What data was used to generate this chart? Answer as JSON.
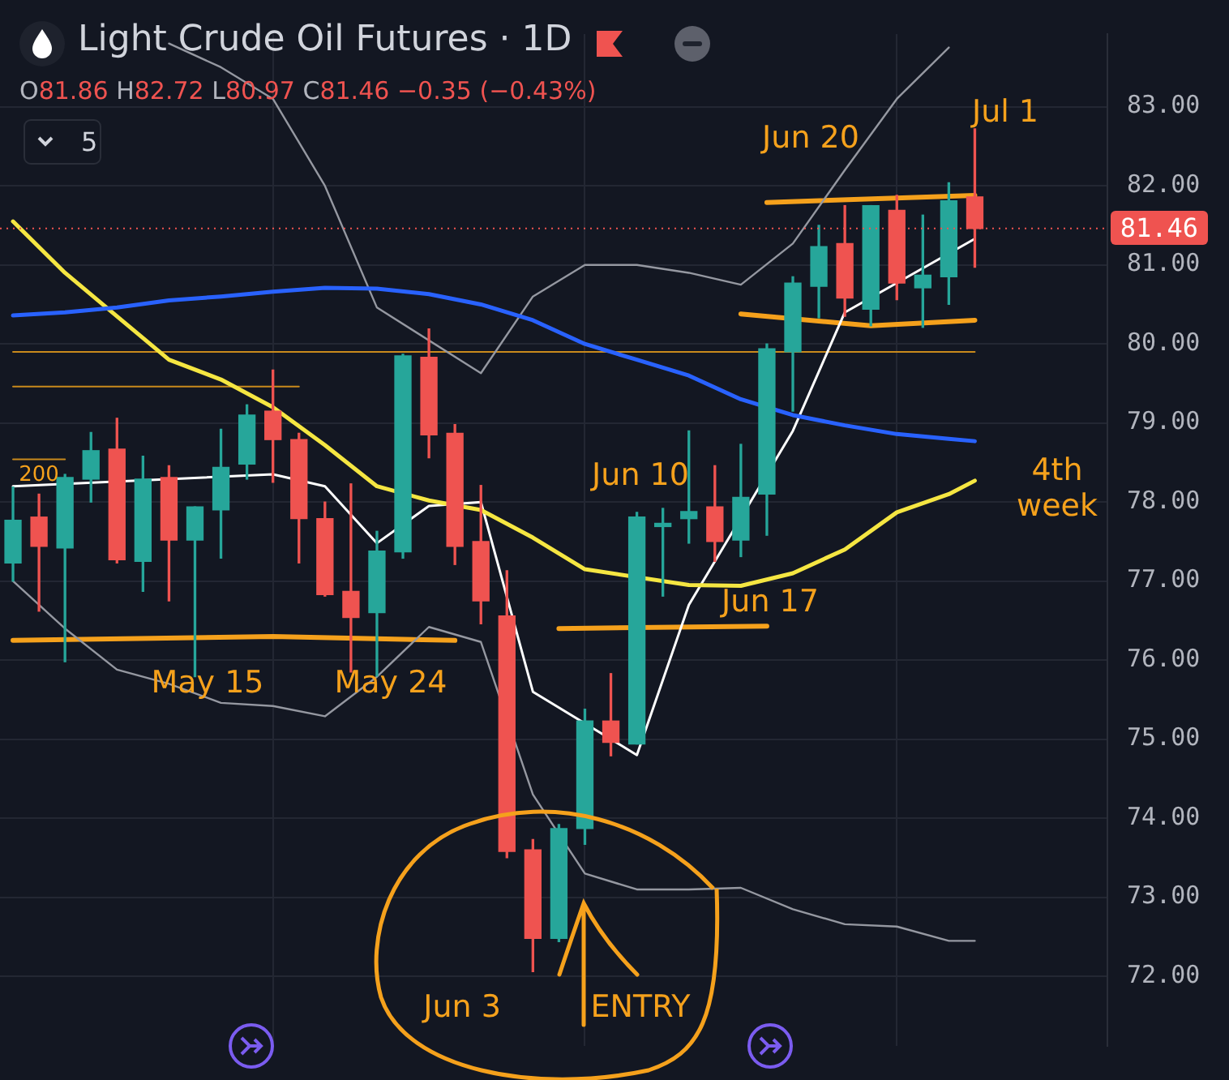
{
  "chart_data": {
    "type": "candlestick",
    "title": "Light Crude Oil Futures · 1D",
    "subtitle": "O81.86 H82.72 L80.97 C81.46 −0.35 (−0.43%)",
    "categories": [
      null,
      null,
      null,
      null,
      null,
      null,
      null,
      null,
      null,
      null,
      null,
      null,
      null,
      null,
      null,
      null,
      null,
      null,
      null,
      null,
      null,
      null,
      null,
      null,
      null,
      null,
      null,
      null,
      null,
      null,
      null,
      null,
      null,
      null,
      null,
      null,
      null,
      null
    ],
    "ohlc": [
      [
        77.23,
        78.19,
        77.0,
        77.77
      ],
      [
        77.81,
        78.1,
        76.62,
        77.44
      ],
      [
        77.42,
        78.35,
        75.98,
        78.31
      ],
      [
        78.29,
        78.88,
        78.0,
        78.65
      ],
      [
        78.67,
        79.06,
        77.23,
        77.27
      ],
      [
        77.25,
        78.58,
        76.87,
        78.29
      ],
      [
        78.31,
        78.46,
        76.75,
        77.52
      ],
      [
        77.52,
        77.94,
        75.79,
        77.94
      ],
      [
        77.9,
        78.92,
        77.29,
        78.44
      ],
      [
        78.48,
        79.23,
        78.29,
        79.1
      ],
      [
        79.15,
        79.67,
        78.25,
        78.79
      ],
      [
        78.79,
        78.87,
        77.23,
        77.79
      ],
      [
        77.79,
        78.0,
        76.81,
        76.83
      ],
      [
        76.87,
        78.23,
        75.85,
        76.54
      ],
      [
        76.6,
        77.63,
        75.8,
        77.38
      ],
      [
        77.37,
        79.87,
        77.29,
        79.85
      ],
      [
        79.83,
        80.19,
        78.56,
        78.85
      ],
      [
        78.87,
        78.98,
        77.21,
        77.44
      ],
      [
        77.5,
        78.21,
        76.46,
        76.75
      ],
      [
        76.56,
        77.13,
        73.5,
        73.58
      ],
      [
        73.6,
        73.73,
        72.06,
        72.48
      ],
      [
        72.48,
        73.92,
        72.44,
        73.87
      ],
      [
        73.87,
        75.38,
        73.67,
        75.23
      ],
      [
        75.23,
        75.83,
        74.79,
        74.96
      ],
      [
        74.94,
        77.87,
        74.94,
        77.81
      ],
      [
        77.69,
        77.92,
        76.81,
        77.73
      ],
      [
        77.79,
        78.9,
        77.48,
        77.88
      ],
      [
        77.94,
        78.46,
        77.25,
        77.5
      ],
      [
        77.52,
        78.73,
        77.31,
        78.06
      ],
      [
        78.1,
        80.0,
        77.58,
        79.94
      ],
      [
        79.9,
        80.85,
        79.15,
        80.77
      ],
      [
        80.73,
        81.5,
        80.33,
        81.23
      ],
      [
        81.27,
        81.75,
        80.35,
        80.58
      ],
      [
        80.44,
        81.75,
        80.23,
        81.75
      ],
      [
        81.69,
        81.88,
        80.56,
        80.77
      ],
      [
        80.71,
        81.63,
        80.21,
        80.87
      ],
      [
        80.85,
        82.04,
        80.5,
        81.81
      ],
      [
        81.86,
        82.72,
        80.97,
        81.46
      ]
    ],
    "colors": [
      "#26a69a",
      "#ef5350",
      "#26a69a",
      "#26a69a",
      "#ef5350",
      "#26a69a",
      "#ef5350",
      "#26a69a",
      "#26a69a",
      "#26a69a",
      "#ef5350",
      "#ef5350",
      "#ef5350",
      "#ef5350",
      "#26a69a",
      "#26a69a",
      "#ef5350",
      "#ef5350",
      "#ef5350",
      "#ef5350",
      "#ef5350",
      "#26a69a",
      "#26a69a",
      "#ef5350",
      "#26a69a",
      "#26a69a",
      "#26a69a",
      "#ef5350",
      "#26a69a",
      "#26a69a",
      "#26a69a",
      "#26a69a",
      "#ef5350",
      "#26a69a",
      "#ef5350",
      "#26a69a",
      "#26a69a",
      "#ef5350"
    ],
    "series": [
      {
        "type": "line",
        "color": "#2962ff",
        "values": [
          80.36,
          null,
          80.4,
          null,
          80.46,
          null,
          80.55,
          null,
          80.6,
          null,
          80.66,
          null,
          80.71,
          null,
          80.7,
          null,
          80.63,
          null,
          80.5,
          null,
          80.3,
          null,
          80.0,
          null,
          79.8,
          null,
          79.6,
          null,
          79.3,
          null,
          79.1,
          null,
          78.97,
          null,
          78.86,
          null,
          78.8,
          78.77
        ]
      },
      {
        "type": "line",
        "color": "#f5e642",
        "values": [
          81.55,
          null,
          80.9,
          null,
          80.35,
          null,
          79.8,
          null,
          79.55,
          null,
          79.2,
          null,
          78.72,
          null,
          78.2,
          null,
          78.02,
          null,
          77.9,
          null,
          77.55,
          null,
          77.15,
          null,
          null,
          null,
          76.95,
          null,
          76.94,
          null,
          77.1,
          null,
          77.4,
          null,
          77.87,
          null,
          78.1,
          78.27
        ]
      },
      {
        "type": "line",
        "color": "#ffffff",
        "values": [
          78.2,
          null,
          null,
          null,
          null,
          null,
          null,
          null,
          null,
          null,
          78.35,
          null,
          78.2,
          null,
          77.48,
          null,
          77.95,
          null,
          78.0,
          null,
          75.6,
          null,
          null,
          null,
          74.8,
          null,
          76.7,
          null,
          null,
          null,
          78.9,
          null,
          80.4,
          null,
          null,
          null,
          null,
          81.33
        ]
      },
      {
        "type": "line",
        "color": "#9598a1",
        "values": [
          null,
          null,
          null,
          null,
          null,
          null,
          83.8,
          null,
          83.5,
          null,
          83.1,
          null,
          82.0,
          null,
          80.46,
          null,
          null,
          null,
          79.63,
          null,
          80.6,
          null,
          81.0,
          null,
          81.0,
          null,
          80.9,
          null,
          80.75,
          null,
          81.27,
          null,
          82.2,
          null,
          83.1,
          null,
          83.75,
          null
        ]
      },
      {
        "type": "line",
        "color": "#9598a1",
        "values": [
          77.0,
          null,
          76.4,
          null,
          75.88,
          null,
          75.7,
          null,
          75.46,
          null,
          75.42,
          null,
          75.29,
          null,
          75.79,
          null,
          76.42,
          null,
          76.23,
          null,
          74.3,
          null,
          73.3,
          null,
          73.1,
          null,
          73.1,
          null,
          73.12,
          null,
          72.85,
          null,
          72.66,
          null,
          72.63,
          null,
          72.45,
          72.45
        ]
      },
      {
        "type": "line",
        "color": "#f5a11c",
        "values": [
          76.25,
          null,
          null,
          null,
          null,
          null,
          null,
          null,
          null,
          null,
          76.3,
          null,
          null,
          null,
          null,
          null,
          null,
          76.25,
          null,
          null,
          null,
          null,
          null,
          null,
          null,
          null,
          null,
          null,
          null,
          null,
          null,
          null,
          null,
          null,
          null,
          null,
          null,
          null
        ]
      },
      {
        "type": "line",
        "color": "#f5a11c",
        "values": [
          null,
          null,
          null,
          null,
          null,
          null,
          null,
          null,
          null,
          null,
          null,
          null,
          null,
          null,
          null,
          null,
          null,
          null,
          null,
          null,
          null,
          76.4,
          null,
          null,
          null,
          null,
          null,
          null,
          null,
          76.43,
          null,
          null,
          null,
          null,
          null,
          null,
          null,
          null
        ]
      },
      {
        "type": "line",
        "color": "#f5a11c",
        "values": [
          null,
          null,
          null,
          null,
          null,
          null,
          null,
          null,
          null,
          null,
          null,
          null,
          null,
          null,
          null,
          null,
          null,
          null,
          null,
          null,
          null,
          null,
          null,
          null,
          null,
          null,
          null,
          null,
          80.38,
          null,
          null,
          null,
          null,
          80.23,
          null,
          null,
          null,
          80.3
        ]
      },
      {
        "type": "line",
        "color": "#f5a11c",
        "values": [
          null,
          null,
          null,
          null,
          null,
          null,
          null,
          null,
          null,
          null,
          null,
          null,
          null,
          null,
          null,
          null,
          null,
          null,
          null,
          null,
          null,
          null,
          null,
          null,
          null,
          null,
          null,
          null,
          null,
          81.79,
          null,
          null,
          null,
          null,
          null,
          null,
          null,
          81.88
        ]
      },
      {
        "type": "line",
        "color": "#c98a1c",
        "values": [
          79.9,
          null,
          null,
          null,
          null,
          null,
          null,
          null,
          null,
          null,
          null,
          null,
          null,
          null,
          null,
          null,
          null,
          null,
          null,
          null,
          null,
          null,
          null,
          null,
          null,
          null,
          null,
          null,
          null,
          null,
          null,
          null,
          null,
          null,
          null,
          null,
          null,
          79.9
        ]
      },
      {
        "type": "line",
        "color": "#c98a1c",
        "values": [
          79.46,
          null,
          null,
          null,
          null,
          null,
          null,
          null,
          null,
          null,
          null,
          79.46,
          null,
          null,
          null,
          null,
          null,
          null,
          null,
          null,
          null,
          null,
          null,
          null,
          null,
          null,
          null,
          null,
          null,
          null,
          null,
          null,
          null,
          null,
          null,
          null,
          null,
          null
        ]
      },
      {
        "type": "line",
        "color": "#c98a1c",
        "values": [
          78.54,
          null,
          78.54,
          null,
          null,
          null,
          null,
          null,
          null,
          null,
          null,
          null,
          null,
          null,
          null,
          null,
          null,
          null,
          null,
          null,
          null,
          null,
          null,
          null,
          null,
          null,
          null,
          null,
          null,
          null,
          null,
          null,
          null,
          null,
          null,
          null,
          null,
          null
        ]
      }
    ],
    "ylim": [
      71.12,
      83.92
    ],
    "yticks": [
      {
        "value": 72,
        "label": "72.00"
      },
      {
        "value": 73,
        "label": "73.00"
      },
      {
        "value": 74,
        "label": "74.00"
      },
      {
        "value": 75,
        "label": "75.00"
      },
      {
        "value": 76,
        "label": "76.00"
      },
      {
        "value": 77,
        "label": "77.00"
      },
      {
        "value": 78,
        "label": "78.00"
      },
      {
        "value": 79,
        "label": "79.00"
      },
      {
        "value": 80,
        "label": "80.00"
      },
      {
        "value": 81,
        "label": "81.00"
      },
      {
        "value": 82,
        "label": "82.00"
      },
      {
        "value": 83,
        "label": "83.00"
      }
    ],
    "ref_lines": [
      {
        "axis": "y",
        "value": 81.46,
        "label": "81.46",
        "color": "#ef5350",
        "line_style": "dotted"
      }
    ],
    "annotations": [
      "200",
      "May 15",
      "May 24",
      "Jun 3",
      "ENTRY",
      "Jun 10",
      "Jun 17",
      "Jun 20",
      "Jul 1",
      "4th week",
      "5"
    ],
    "grid": true,
    "legend": false,
    "tick_labels": "y",
    "marker": "none"
  }
}
